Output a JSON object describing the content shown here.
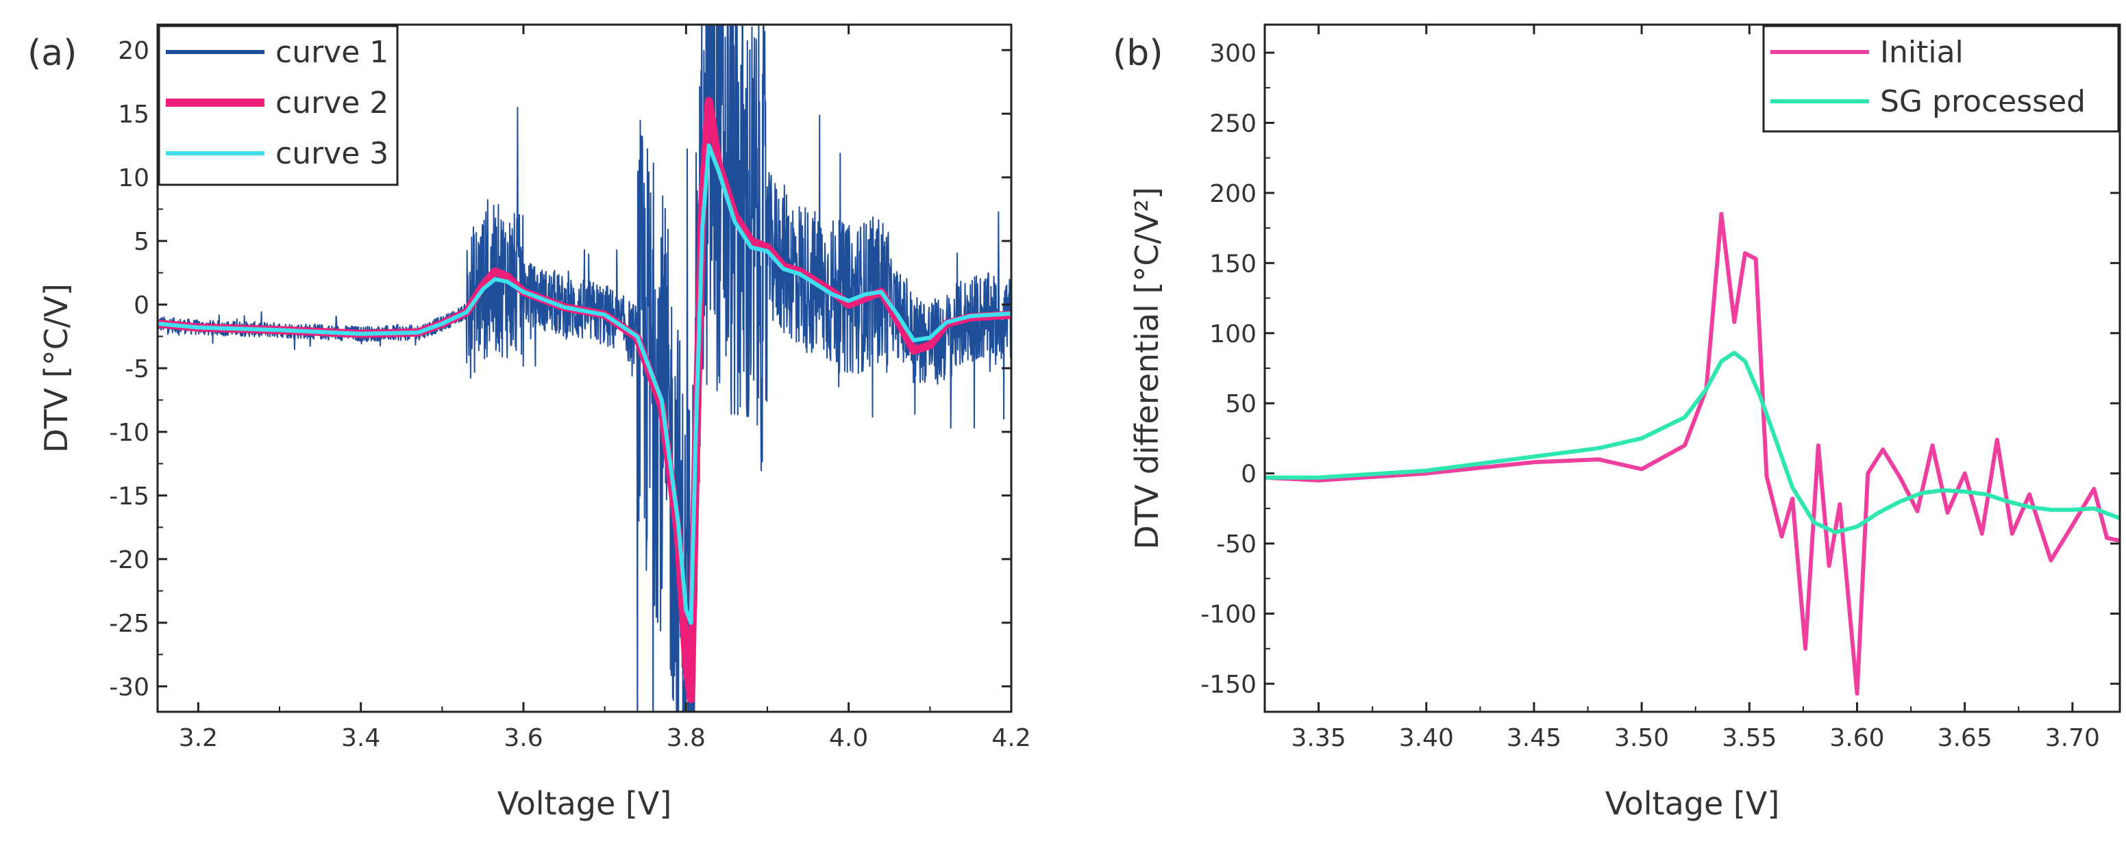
{
  "chart_data": [
    {
      "panel_label": "(a)",
      "type": "line",
      "xlabel": "Voltage [V]",
      "ylabel": "DTV [°C/V]",
      "xlim": [
        3.15,
        4.2
      ],
      "ylim": [
        -32,
        22
      ],
      "xticks": [
        3.2,
        3.4,
        3.6,
        3.8,
        4.0,
        4.2
      ],
      "xtick_labels": [
        "3.2",
        "3.4",
        "3.6",
        "3.8",
        "4.0",
        "4.2"
      ],
      "yticks": [
        20,
        15,
        10,
        5,
        0,
        -5,
        -10,
        -15,
        -20,
        -25,
        -30
      ],
      "ytick_labels": [
        "20",
        "15",
        "10",
        "5",
        "0",
        "-5",
        "-10",
        "-15",
        "-20",
        "-25",
        "-30"
      ],
      "legend": {
        "position": "top-left"
      },
      "series": [
        {
          "name": "curve 1",
          "color": "#1f4e9a",
          "style": "noisy",
          "x": [
            3.15,
            3.2,
            3.3,
            3.4,
            3.47,
            3.5,
            3.53,
            3.55,
            3.57,
            3.6,
            3.65,
            3.7,
            3.74,
            3.77,
            3.79,
            3.8,
            3.81,
            3.815,
            3.82,
            3.83,
            3.85,
            3.88,
            3.92,
            3.96,
            4.0,
            4.04,
            4.08,
            4.11,
            4.15,
            4.2
          ],
          "y": [
            -1.5,
            -1.8,
            -2.0,
            -2.3,
            -2.2,
            -1.5,
            -0.5,
            1.5,
            2.0,
            1.0,
            -0.2,
            -0.8,
            -2.5,
            -8.0,
            -18.0,
            -26.0,
            -20.0,
            -5.0,
            8.0,
            12.5,
            9.0,
            5.5,
            3.5,
            1.5,
            0.3,
            1.2,
            -2.5,
            -3.0,
            -1.0,
            -1.0
          ]
        },
        {
          "name": "curve 2",
          "color": "#ee1f78",
          "style": "thick",
          "x": [
            3.15,
            3.2,
            3.3,
            3.4,
            3.47,
            3.5,
            3.53,
            3.55,
            3.565,
            3.58,
            3.6,
            3.65,
            3.7,
            3.74,
            3.77,
            3.79,
            3.8,
            3.806,
            3.812,
            3.82,
            3.828,
            3.84,
            3.86,
            3.88,
            3.9,
            3.92,
            3.94,
            3.96,
            3.98,
            4.0,
            4.02,
            4.04,
            4.06,
            4.08,
            4.1,
            4.12,
            4.15,
            4.2
          ],
          "y": [
            -1.5,
            -1.8,
            -2.0,
            -2.3,
            -2.2,
            -1.5,
            -0.6,
            1.5,
            2.6,
            2.2,
            1.0,
            -0.2,
            -0.8,
            -2.6,
            -8.0,
            -18.0,
            -28.0,
            -31.0,
            -12.0,
            8.0,
            16.0,
            11.0,
            7.0,
            5.0,
            4.5,
            3.0,
            2.6,
            1.8,
            1.0,
            0.0,
            0.5,
            1.0,
            -1.2,
            -3.6,
            -3.2,
            -1.5,
            -1.0,
            -0.8
          ]
        },
        {
          "name": "curve 3",
          "color": "#3ee0ee",
          "style": "smooth",
          "x": [
            3.15,
            3.2,
            3.3,
            3.4,
            3.47,
            3.5,
            3.53,
            3.55,
            3.565,
            3.58,
            3.6,
            3.65,
            3.7,
            3.74,
            3.77,
            3.79,
            3.8,
            3.806,
            3.812,
            3.82,
            3.828,
            3.84,
            3.86,
            3.88,
            3.9,
            3.92,
            3.94,
            3.96,
            3.98,
            4.0,
            4.02,
            4.04,
            4.06,
            4.08,
            4.1,
            4.12,
            4.15,
            4.2
          ],
          "y": [
            -1.5,
            -1.8,
            -2.0,
            -2.3,
            -2.2,
            -1.5,
            -0.6,
            1.2,
            2.0,
            1.8,
            1.0,
            -0.2,
            -0.8,
            -2.5,
            -7.5,
            -17.0,
            -24.0,
            -25.0,
            -10.0,
            6.0,
            12.5,
            10.5,
            6.5,
            4.5,
            4.2,
            2.8,
            2.4,
            1.6,
            0.8,
            0.3,
            0.8,
            1.0,
            -0.8,
            -2.8,
            -2.6,
            -1.4,
            -0.9,
            -0.7
          ]
        }
      ]
    },
    {
      "panel_label": "(b)",
      "type": "line",
      "xlabel": "Voltage [V]",
      "ylabel": "DTV differential [°C/V²]",
      "xlim": [
        3.325,
        3.722
      ],
      "ylim": [
        -170,
        320
      ],
      "xticks": [
        3.35,
        3.4,
        3.45,
        3.5,
        3.55,
        3.6,
        3.65,
        3.7
      ],
      "xtick_labels": [
        "3.35",
        "3.40",
        "3.45",
        "3.50",
        "3.55",
        "3.60",
        "3.65",
        "3.70"
      ],
      "yticks": [
        300,
        250,
        200,
        150,
        100,
        50,
        0,
        -50,
        -100,
        -150
      ],
      "ytick_labels": [
        "300",
        "250",
        "200",
        "150",
        "100",
        "50",
        "0",
        "-50",
        "-100",
        "-150"
      ],
      "legend": {
        "position": "top-right"
      },
      "series": [
        {
          "name": "Initial",
          "color": "#ee3f9e",
          "x": [
            3.325,
            3.35,
            3.4,
            3.45,
            3.48,
            3.5,
            3.52,
            3.53,
            3.537,
            3.543,
            3.548,
            3.553,
            3.558,
            3.565,
            3.57,
            3.576,
            3.582,
            3.587,
            3.592,
            3.6,
            3.605,
            3.612,
            3.62,
            3.628,
            3.635,
            3.642,
            3.65,
            3.658,
            3.665,
            3.672,
            3.68,
            3.69,
            3.7,
            3.71,
            3.716,
            3.722
          ],
          "y": [
            -3,
            -5,
            0,
            8,
            10,
            3,
            20,
            60,
            185,
            108,
            157,
            153,
            -2,
            -45,
            -18,
            -125,
            20,
            -66,
            -22,
            -157,
            0,
            17,
            -3,
            -27,
            20,
            -28,
            0,
            -43,
            24,
            -43,
            -15,
            -62,
            -37,
            -11,
            -46,
            -48
          ]
        },
        {
          "name": "SG processed",
          "color": "#2ee7b0",
          "x": [
            3.325,
            3.35,
            3.4,
            3.45,
            3.48,
            3.5,
            3.52,
            3.53,
            3.537,
            3.543,
            3.548,
            3.555,
            3.562,
            3.57,
            3.58,
            3.59,
            3.6,
            3.61,
            3.62,
            3.63,
            3.64,
            3.65,
            3.66,
            3.67,
            3.68,
            3.69,
            3.7,
            3.71,
            3.722
          ],
          "y": [
            -3,
            -3,
            2,
            12,
            18,
            25,
            40,
            60,
            80,
            86,
            80,
            55,
            25,
            -10,
            -35,
            -42,
            -38,
            -28,
            -20,
            -14,
            -12,
            -13,
            -15,
            -20,
            -24,
            -26,
            -26,
            -25,
            -32
          ]
        }
      ]
    }
  ]
}
